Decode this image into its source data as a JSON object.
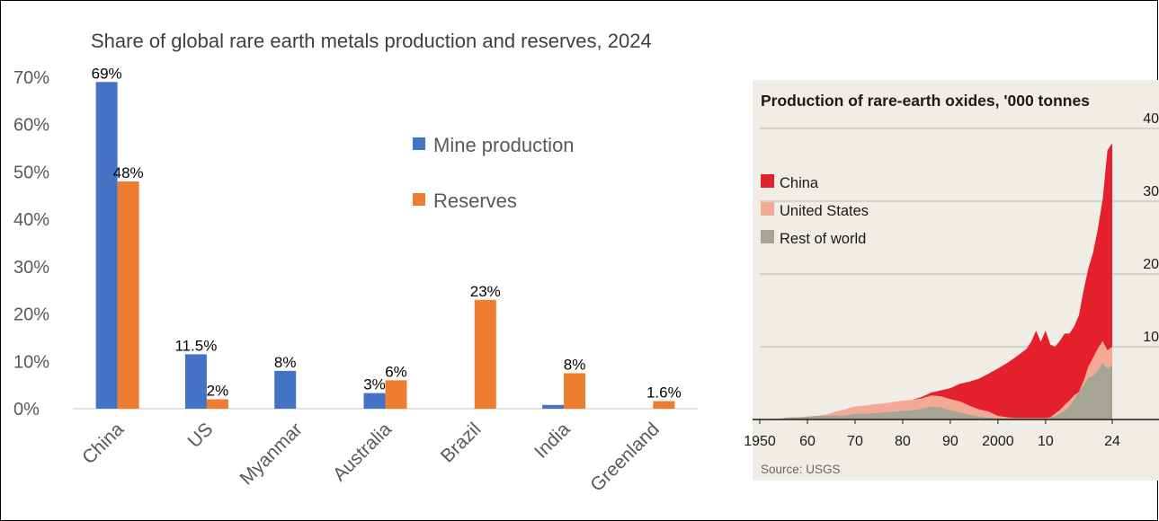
{
  "chart_data": [
    {
      "type": "bar",
      "title": "Share of global rare earth metals production and reserves, 2024",
      "categories": [
        "China",
        "US",
        "Myanmar",
        "Australia",
        "Brazil",
        "India",
        "Greenland"
      ],
      "series": [
        {
          "name": "Mine production",
          "color": "#4472C4",
          "values": [
            69,
            11.5,
            8,
            3.3,
            0,
            0.8,
            0
          ],
          "labels": [
            "69%",
            "11.5%",
            "8%",
            "3%",
            "",
            "",
            ""
          ]
        },
        {
          "name": "Reserves",
          "color": "#ED7D31",
          "values": [
            48,
            2,
            0,
            6,
            23,
            7.5,
            1.6
          ],
          "labels": [
            "48%",
            "2%",
            "",
            "6%",
            "23%",
            "8%",
            "1.6%"
          ]
        }
      ],
      "ylim": [
        0,
        70
      ],
      "yticks": [
        0,
        10,
        20,
        30,
        40,
        50,
        60,
        70
      ],
      "ytick_labels": [
        "0%",
        "10%",
        "20%",
        "30%",
        "40%",
        "50%",
        "60%",
        "70%"
      ],
      "legend_position": "top-right",
      "grid": false
    },
    {
      "type": "area",
      "stacked": true,
      "title": "Production of rare-earth oxides, '000 tonnes",
      "source": "Source: USGS",
      "x": [
        1950,
        1952,
        1954,
        1956,
        1958,
        1960,
        1962,
        1964,
        1966,
        1968,
        1970,
        1972,
        1974,
        1976,
        1978,
        1980,
        1982,
        1984,
        1986,
        1988,
        1990,
        1992,
        1994,
        1996,
        1998,
        2000,
        2002,
        2004,
        2006,
        2007,
        2008,
        2009,
        2010,
        2011,
        2012,
        2013,
        2014,
        2015,
        2016,
        2017,
        2018,
        2019,
        2020,
        2021,
        2022,
        2023,
        2024
      ],
      "series": [
        {
          "name": "Rest of world",
          "color": "#A6A492",
          "values": [
            0,
            0.1,
            0.1,
            0.3,
            0.3,
            0.4,
            0.5,
            0.5,
            0.6,
            0.6,
            0.8,
            0.8,
            0.9,
            1.0,
            1.1,
            1.2,
            1.3,
            1.5,
            1.8,
            1.7,
            1.3,
            1.0,
            0.7,
            0.4,
            0.3,
            0.2,
            0.2,
            0.2,
            0.2,
            0.2,
            0.2,
            0.2,
            0.2,
            0.3,
            0.5,
            0.8,
            1.2,
            1.8,
            2.8,
            3.8,
            4.8,
            5.8,
            6.0,
            6.8,
            7.8,
            7.0,
            7.5
          ]
        },
        {
          "name": "United States",
          "color": "#F4A896",
          "values": [
            0,
            0,
            0,
            0,
            0,
            0,
            0,
            0.2,
            0.5,
            0.8,
            1.0,
            1.1,
            1.2,
            1.2,
            1.3,
            1.4,
            1.4,
            1.4,
            1.5,
            1.5,
            1.5,
            1.5,
            1.2,
            1.0,
            0.8,
            0.3,
            0.1,
            0,
            0,
            0,
            0,
            0,
            0,
            0,
            0.3,
            0.5,
            0.8,
            0.8,
            0.5,
            0,
            0.5,
            1.5,
            2.5,
            3.0,
            3.0,
            2.5,
            2.5
          ]
        },
        {
          "name": "China",
          "color": "#E3202C",
          "values": [
            0,
            0,
            0,
            0,
            0,
            0,
            0,
            0,
            0,
            0,
            0,
            0,
            0,
            0,
            0,
            0,
            0,
            0.2,
            0.4,
            0.8,
            1.5,
            2.4,
            3.3,
            4.2,
            5.2,
            6.5,
            7.5,
            8.5,
            9.5,
            10.5,
            12.0,
            10.5,
            12.0,
            10.0,
            9.2,
            9.5,
            9.8,
            9.2,
            9.5,
            10.5,
            12.5,
            13.5,
            14.5,
            16.5,
            19.5,
            27.5,
            28.0
          ]
        }
      ],
      "xticks": [
        1950,
        1960,
        1970,
        1980,
        1990,
        2000,
        2010,
        2024
      ],
      "xtick_labels": [
        "1950",
        "60",
        "70",
        "80",
        "90",
        "2000",
        "10",
        "24"
      ],
      "ylim": [
        0,
        40
      ],
      "yticks": [
        10,
        20,
        30,
        40
      ],
      "ytick_labels": [
        "10",
        "20",
        "30",
        "40"
      ],
      "legend_position": "top-left",
      "grid": true
    }
  ]
}
